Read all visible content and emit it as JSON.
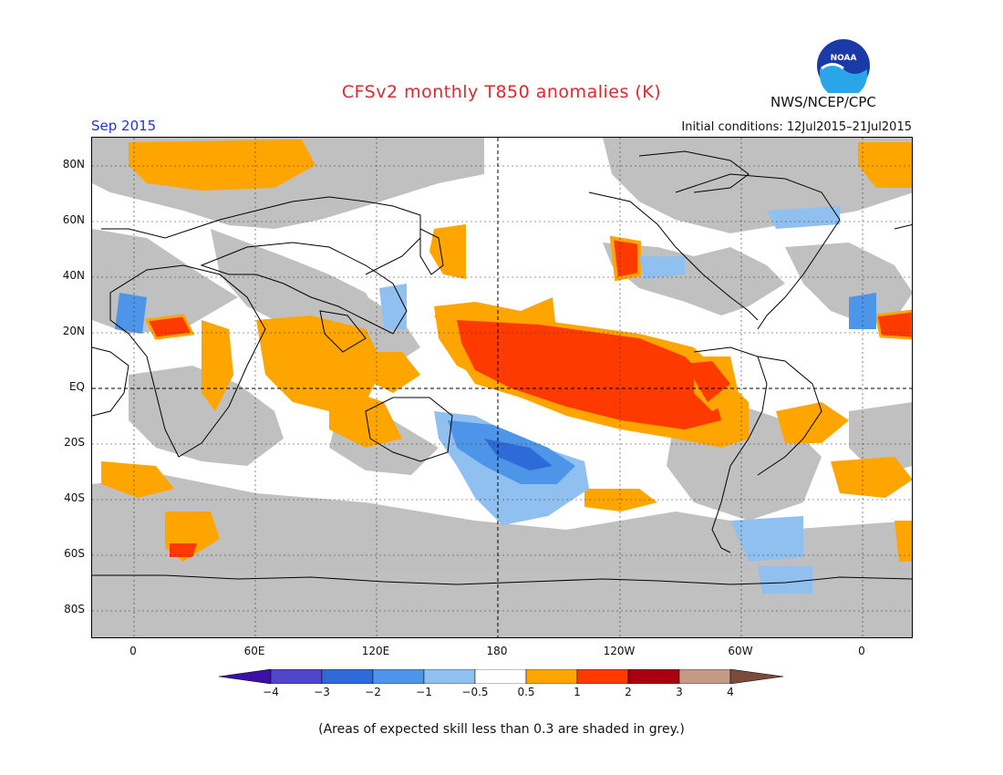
{
  "title": "CFSv2 monthly T850 anomalies (K)",
  "valid_month": "Sep 2015",
  "initial_conditions": "Initial conditions: 12Jul2015–21Jul2015",
  "agency": "NWS/NCEP/CPC",
  "logo_text": "NOAA",
  "footnote": "(Areas of expected skill less than 0.3 are shaded in grey.)",
  "y_ticks": [
    "80N",
    "60N",
    "40N",
    "20N",
    "EQ",
    "20S",
    "40S",
    "60S",
    "80S"
  ],
  "x_ticks": [
    "0",
    "60E",
    "120E",
    "180",
    "120W",
    "60W",
    "0"
  ],
  "colorbar": {
    "labels": [
      "−4",
      "−3",
      "−2",
      "−1",
      "−0.5",
      "0.5",
      "1",
      "2",
      "3",
      "4"
    ],
    "colors": [
      "#3a10a8",
      "#5046cc",
      "#2f6bd8",
      "#4d95e8",
      "#8fc0f0",
      "#ffffff",
      "#ffa500",
      "#ff3a00",
      "#a80010",
      "#c49a86",
      "#7a4a3a"
    ]
  },
  "colors": {
    "title": "#e8242b",
    "month": "#2333d8",
    "grey": "#c0c0c0",
    "warm1": "#ffa500",
    "warm2": "#ff3a00",
    "warm3": "#a80010",
    "cool1": "#8fc0f0",
    "cool2": "#4d95e8",
    "cool3": "#2f6bd8"
  }
}
